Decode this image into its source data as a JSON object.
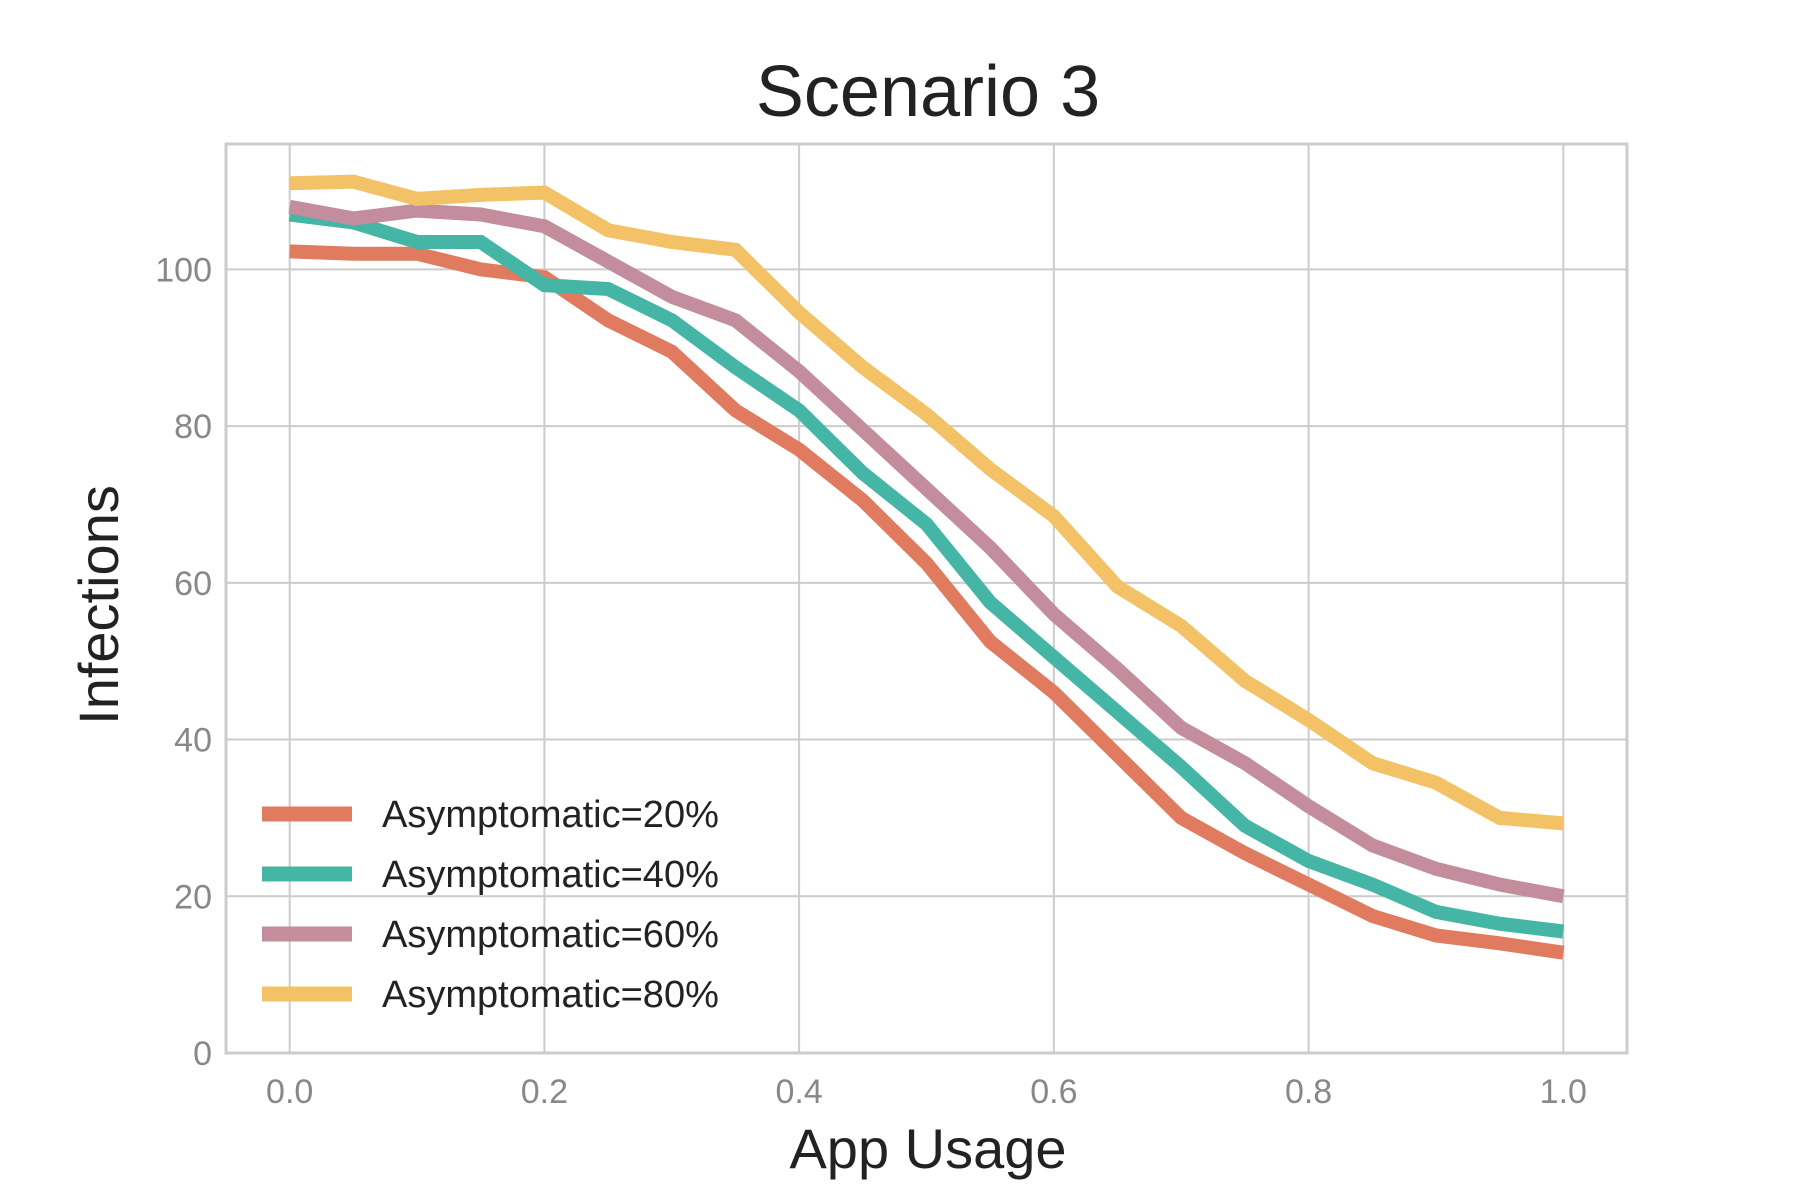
{
  "chart_data": {
    "type": "line",
    "title": "Scenario 3",
    "xlabel": "App Usage",
    "ylabel": "Infections",
    "xlim": [
      -0.05,
      1.05
    ],
    "ylim": [
      0,
      116
    ],
    "xticks": [
      0.0,
      0.2,
      0.4,
      0.6,
      0.8,
      1.0
    ],
    "xtick_labels": [
      "0.0",
      "0.2",
      "0.4",
      "0.6",
      "0.8",
      "1.0"
    ],
    "yticks": [
      0,
      20,
      40,
      60,
      80,
      100
    ],
    "ytick_labels": [
      "0",
      "20",
      "40",
      "60",
      "80",
      "100"
    ],
    "grid": true,
    "legend_position": "lower-left",
    "x": [
      0.0,
      0.05,
      0.1,
      0.15,
      0.2,
      0.25,
      0.3,
      0.35,
      0.4,
      0.45,
      0.5,
      0.55,
      0.6,
      0.65,
      0.7,
      0.75,
      0.8,
      0.85,
      0.9,
      0.95,
      1.0
    ],
    "series": [
      {
        "name": "Asymptomatic=20%",
        "color": "#e07b5f",
        "values": [
          102.3,
          102.0,
          102.0,
          100.0,
          99.0,
          93.5,
          89.5,
          82.0,
          77.0,
          70.5,
          62.5,
          52.5,
          46.0,
          38.0,
          30.0,
          25.5,
          21.5,
          17.5,
          15.0,
          14.0,
          12.8
        ]
      },
      {
        "name": "Asymptomatic=40%",
        "color": "#45b5a5",
        "values": [
          107.0,
          106.0,
          103.5,
          103.5,
          98.0,
          97.5,
          93.5,
          87.5,
          82.0,
          74.0,
          67.5,
          57.5,
          50.5,
          43.5,
          36.5,
          29.0,
          24.5,
          21.5,
          18.0,
          16.5,
          15.5
        ]
      },
      {
        "name": "Asymptomatic=60%",
        "color": "#c38d9e",
        "values": [
          108.0,
          106.5,
          107.5,
          107.0,
          105.5,
          101.0,
          96.5,
          93.5,
          87.0,
          79.5,
          72.0,
          64.5,
          56.0,
          49.0,
          41.5,
          37.0,
          31.5,
          26.5,
          23.5,
          21.5,
          20.0
        ]
      },
      {
        "name": "Asymptomatic=80%",
        "color": "#f3c266",
        "values": [
          111.0,
          111.2,
          109.0,
          109.5,
          109.8,
          105.0,
          103.5,
          102.5,
          94.5,
          87.5,
          81.5,
          74.5,
          68.5,
          59.5,
          54.5,
          47.5,
          42.5,
          37.0,
          34.5,
          30.0,
          29.3
        ]
      }
    ]
  }
}
